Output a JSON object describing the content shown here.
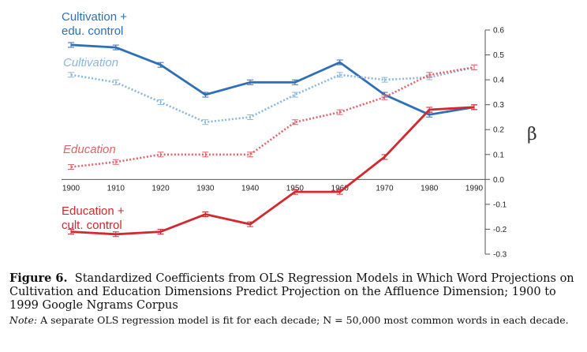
{
  "chart_data": {
    "type": "line",
    "x": [
      1900,
      1910,
      1920,
      1930,
      1940,
      1950,
      1960,
      1970,
      1980,
      1990
    ],
    "ylabel": "β",
    "ylim": [
      -0.3,
      0.6
    ],
    "yticks": [
      "0.6",
      "0.5",
      "0.4",
      "0.3",
      "0.2",
      "0.1",
      "0.0",
      "-0.1",
      "-0.2",
      "-0.3"
    ],
    "xticks": [
      "1900",
      "1910",
      "1920",
      "1930",
      "1940",
      "1950",
      "1960",
      "1970",
      "1980",
      "1990"
    ],
    "series": [
      {
        "name": "Cultivation +\nedu. control",
        "name_lines": [
          "Cultivation +",
          "edu. control"
        ],
        "style": "solid",
        "color": "#2f6fb5",
        "values": [
          0.54,
          0.53,
          0.46,
          0.34,
          0.39,
          0.39,
          0.47,
          0.34,
          0.26,
          0.29
        ]
      },
      {
        "name": "Cultivation",
        "name_lines": [
          "Cultivation"
        ],
        "style": "dotted",
        "color": "#8ab6e0",
        "values": [
          0.42,
          0.39,
          0.31,
          0.23,
          0.25,
          0.34,
          0.42,
          0.4,
          0.41,
          0.45
        ]
      },
      {
        "name": "Education",
        "name_lines": [
          "Education"
        ],
        "style": "dotted",
        "color": "#e0636a",
        "values": [
          0.05,
          0.07,
          0.1,
          0.1,
          0.1,
          0.23,
          0.27,
          0.33,
          0.42,
          0.45
        ]
      },
      {
        "name": "Education +\ncult. control",
        "name_lines": [
          "Education +",
          "cult. control"
        ],
        "style": "solid",
        "color": "#d2282e",
        "values": [
          -0.21,
          -0.22,
          -0.21,
          -0.14,
          -0.18,
          -0.05,
          -0.05,
          0.09,
          0.28,
          0.29
        ]
      }
    ]
  },
  "caption": {
    "figure_label": "Figure 6.",
    "title": "Standardized Coefficients from OLS Regression Models in Which Word Projections on Cultivation and Education Dimensions Predict Projection on the Affluence Dimension; 1900 to 1999 Google Ngrams Corpus",
    "note_label": "Note:",
    "note_text": "A separate OLS regression model is fit for each decade; N = 50,000 most common words in each decade."
  }
}
